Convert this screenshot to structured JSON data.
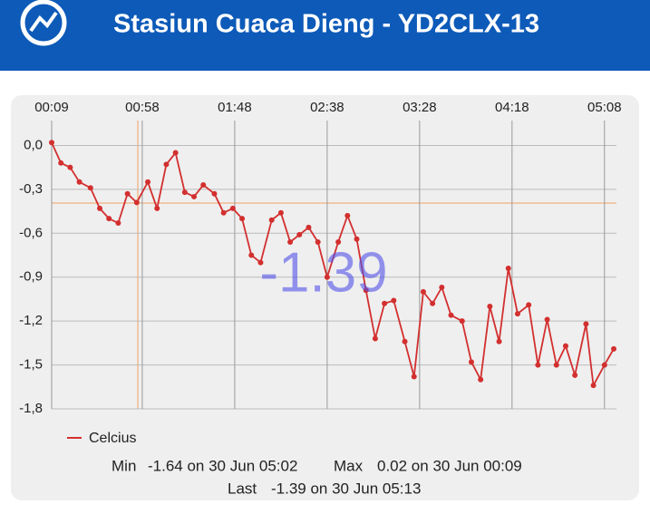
{
  "header": {
    "title": "Stasiun Cuaca Dieng - YD2CLX-13"
  },
  "chart_data": {
    "type": "line",
    "x": [
      9,
      14,
      19,
      24,
      30,
      35,
      40,
      45,
      50,
      55,
      61,
      66,
      71,
      76,
      81,
      86,
      91,
      97,
      102,
      107,
      112,
      117,
      122,
      128,
      133,
      138,
      143,
      148,
      153,
      158,
      164,
      169,
      174,
      179,
      184,
      189,
      194,
      200,
      205,
      210,
      215,
      220,
      225,
      231,
      236,
      241,
      246,
      251,
      256,
      261,
      267,
      272,
      277,
      282,
      287,
      292,
      298,
      302,
      308,
      313
    ],
    "series": [
      {
        "name": "Celcius",
        "color": "#d32f2f",
        "values": [
          0.02,
          -0.12,
          -0.15,
          -0.25,
          -0.29,
          -0.43,
          -0.5,
          -0.53,
          -0.33,
          -0.39,
          -0.25,
          -0.43,
          -0.13,
          -0.05,
          -0.32,
          -0.35,
          -0.27,
          -0.33,
          -0.46,
          -0.43,
          -0.5,
          -0.75,
          -0.8,
          -0.51,
          -0.46,
          -0.66,
          -0.61,
          -0.56,
          -0.66,
          -0.9,
          -0.66,
          -0.48,
          -0.64,
          -0.99,
          -1.32,
          -1.08,
          -1.06,
          -1.34,
          -1.58,
          -1.0,
          -1.08,
          -0.97,
          -1.16,
          -1.2,
          -1.48,
          -1.6,
          -1.1,
          -1.34,
          -0.84,
          -1.15,
          -1.09,
          -1.5,
          -1.19,
          -1.5,
          -1.37,
          -1.57,
          -1.22,
          -1.64,
          -1.5,
          -1.39
        ]
      }
    ],
    "xlim": [
      9,
      313
    ],
    "xticks": [
      {
        "value": 9,
        "label": "00:09"
      },
      {
        "value": 58,
        "label": "00:58"
      },
      {
        "value": 108,
        "label": "01:48"
      },
      {
        "value": 158,
        "label": "02:38"
      },
      {
        "value": 208,
        "label": "03:28"
      },
      {
        "value": 258,
        "label": "04:18"
      },
      {
        "value": 308,
        "label": "05:08"
      }
    ],
    "ylim": [
      -1.8,
      0.17
    ],
    "yticks": [
      {
        "value": 0,
        "label": "0,0"
      },
      {
        "value": -0.3,
        "label": "-0,3"
      },
      {
        "value": -0.6,
        "label": "-0,6"
      },
      {
        "value": -0.9,
        "label": "-0,9"
      },
      {
        "value": -1.2,
        "label": "-1,2"
      },
      {
        "value": -1.5,
        "label": "-1,5"
      },
      {
        "value": -1.8,
        "label": "-1,8"
      }
    ],
    "grid": true,
    "current_value": "-1.39"
  },
  "stats": {
    "min_label": "Min",
    "min": "-1.64 on 30 Jun 05:02",
    "max_label": "Max",
    "max": "0.02 on 30 Jun 00:09",
    "last_label": "Last",
    "last": "-1.39 on 30 Jun 05:13"
  }
}
